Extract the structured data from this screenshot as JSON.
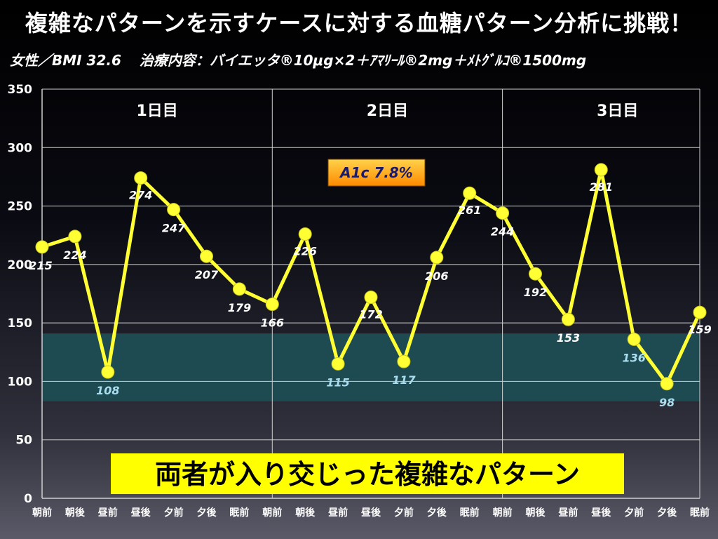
{
  "slide": {
    "title": "複雑なパターンを示すケースに対する血糖パターン分析に挑戦！",
    "patient": "女性／BMI 32.6",
    "treatment": "治療内容：バイエッタ®10μg×2＋ｱﾏﾘｰﾙ®2mg＋ﾒﾄｸﾞﾙｺ®1500mg"
  },
  "chart_data": {
    "type": "line",
    "y_ticks": [
      "0",
      "50",
      "100",
      "150",
      "200",
      "250",
      "300",
      "350"
    ],
    "ylim": [
      0,
      350
    ],
    "target_range": [
      83,
      141
    ],
    "categories": [
      "朝前",
      "朝後",
      "昼前",
      "昼後",
      "夕前",
      "夕後",
      "眠前",
      "朝前",
      "朝後",
      "昼前",
      "昼後",
      "夕前",
      "夕後",
      "眠前",
      "朝前",
      "朝後",
      "昼前",
      "昼後",
      "夕前",
      "夕後",
      "眠前"
    ],
    "values": [
      215,
      224,
      108,
      274,
      247,
      207,
      179,
      166,
      226,
      115,
      172,
      117,
      206,
      261,
      244,
      192,
      153,
      281,
      136,
      98,
      159
    ],
    "value_labels": [
      "215",
      "224",
      "108",
      "274",
      "247",
      "207",
      "179",
      "166",
      "226",
      "115",
      "172",
      "117",
      "206",
      "261",
      "244",
      "192",
      "153",
      "281",
      "136",
      "98",
      "159"
    ],
    "day_labels": [
      "1日目",
      "2日目",
      "3日目"
    ],
    "line_color": "#ffff33",
    "in_range_label_color": "#aaddee",
    "target_band_color": "#1e4a52",
    "annotation": "A1c 7.8%",
    "callout": "両者が入り交じった複雑なパターン",
    "grid": true
  }
}
